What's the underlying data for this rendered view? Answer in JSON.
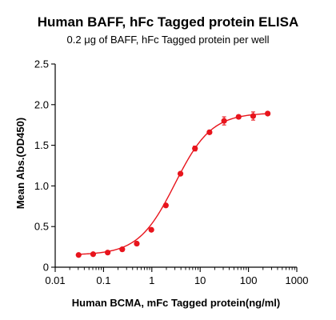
{
  "chart_data": {
    "type": "scatter",
    "title": "Human BAFF, hFc Tagged protein ELISA",
    "subtitle": "0.2 μg of BAFF, hFc Tagged protein per well",
    "xlabel": "Human BCMA, mFc Tagged protein(ng/ml)",
    "ylabel": "Mean Abs.(OD450)",
    "xscale": "log",
    "xlim": [
      0.01,
      1000
    ],
    "ylim": [
      0,
      2.5
    ],
    "x_ticks": [
      0.01,
      0.1,
      1,
      10,
      100,
      1000
    ],
    "x_tick_labels": [
      "0.01",
      "0.1",
      "1",
      "10",
      "100",
      "1000"
    ],
    "y_ticks": [
      0,
      0.5,
      1.0,
      1.5,
      2.0,
      2.5
    ],
    "y_tick_labels": [
      "0",
      "0.5",
      "1.0",
      "1.5",
      "2.0",
      "2.5"
    ],
    "grid": false,
    "color": "#e8141c",
    "fit": "four-parameter logistic",
    "series": [
      {
        "x": [
          0.0305,
          0.061,
          0.122,
          0.244,
          0.488,
          0.977,
          1.95,
          3.91,
          7.81,
          15.6,
          31.3,
          62.5,
          125,
          250
        ],
        "y": [
          0.15,
          0.16,
          0.18,
          0.22,
          0.29,
          0.46,
          0.76,
          1.15,
          1.46,
          1.66,
          1.8,
          1.85,
          1.86,
          1.89
        ],
        "err": [
          0.01,
          0.01,
          0.01,
          0.01,
          0.01,
          0.02,
          0.02,
          0.02,
          0.03,
          0.02,
          0.05,
          0.02,
          0.05,
          0.02
        ]
      }
    ]
  }
}
